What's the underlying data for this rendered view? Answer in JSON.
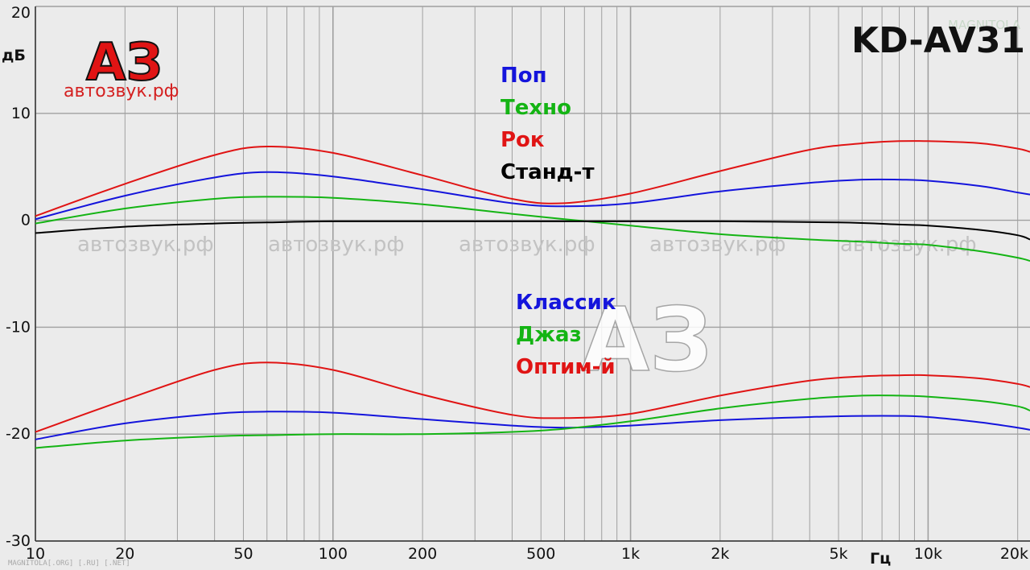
{
  "model": "KD-AV31",
  "logo": {
    "letters": "АЗ",
    "url": "автозвук.рф"
  },
  "watermarks": [
    "автозвук.рф",
    "автозвук.рф",
    "автозвук.рф",
    "автозвук.рф",
    "автозвук.рф"
  ],
  "corner_brand": "MAGNITOLA",
  "footer": "MAGNITOLA[.ORG] [.RU] [.NET]",
  "colors": {
    "blue": "#1414dc",
    "green": "#14b414",
    "red": "#e01414",
    "black": "#000000",
    "background": "#ebebeb",
    "grid": "#a0a0a0"
  },
  "chart_data": {
    "type": "line",
    "title": "",
    "xlabel": "Гц",
    "ylabel": "дБ",
    "xscale": "log",
    "xlim": [
      10,
      22000
    ],
    "ylim": [
      -30,
      20
    ],
    "grid": true,
    "x_tick_labels": [
      {
        "value": 10,
        "label": "10"
      },
      {
        "value": 20,
        "label": "20"
      },
      {
        "value": 50,
        "label": "50"
      },
      {
        "value": 100,
        "label": "100"
      },
      {
        "value": 200,
        "label": "200"
      },
      {
        "value": 500,
        "label": "500"
      },
      {
        "value": 1000,
        "label": "1k"
      },
      {
        "value": 2000,
        "label": "2k"
      },
      {
        "value": 5000,
        "label": "5k"
      },
      {
        "value": 10000,
        "label": "10k"
      },
      {
        "value": 20000,
        "label": "20k"
      }
    ],
    "y_tick_labels": [
      {
        "value": 20,
        "label": "20"
      },
      {
        "value": 10,
        "label": "10"
      },
      {
        "value": 0,
        "label": "0"
      },
      {
        "value": -10,
        "label": "-10"
      },
      {
        "value": -20,
        "label": "-20"
      },
      {
        "value": -30,
        "label": "-30"
      }
    ],
    "legend_groups": [
      [
        "Поп",
        "Техно",
        "Рок",
        "Станд-т"
      ],
      [
        "Классик",
        "Джаз",
        "Оптим-й"
      ]
    ],
    "series": [
      {
        "name": "Поп",
        "color": "blue",
        "x": [
          10,
          20,
          40,
          60,
          100,
          200,
          400,
          600,
          1000,
          2000,
          4000,
          6000,
          8000,
          10000,
          15000,
          20000,
          22000
        ],
        "y": [
          0.1,
          2.3,
          4.0,
          4.5,
          4.1,
          2.9,
          1.6,
          1.3,
          1.6,
          2.7,
          3.5,
          3.8,
          3.8,
          3.7,
          3.2,
          2.6,
          2.4
        ]
      },
      {
        "name": "Техно",
        "color": "green",
        "x": [
          10,
          20,
          40,
          60,
          100,
          200,
          400,
          600,
          1000,
          2000,
          4000,
          6000,
          8000,
          10000,
          15000,
          20000,
          22000
        ],
        "y": [
          -0.3,
          1.1,
          2.0,
          2.2,
          2.1,
          1.5,
          0.6,
          0.1,
          -0.5,
          -1.3,
          -1.8,
          -2.0,
          -2.2,
          -2.3,
          -2.9,
          -3.5,
          -3.8
        ]
      },
      {
        "name": "Рок",
        "color": "red",
        "x": [
          10,
          20,
          40,
          60,
          100,
          200,
          400,
          600,
          1000,
          2000,
          4000,
          6000,
          8000,
          10000,
          15000,
          20000,
          22000
        ],
        "y": [
          0.4,
          3.4,
          6.1,
          6.9,
          6.3,
          4.2,
          2.0,
          1.6,
          2.5,
          4.6,
          6.6,
          7.2,
          7.4,
          7.4,
          7.2,
          6.7,
          6.4
        ]
      },
      {
        "name": "Станд-т",
        "color": "black",
        "x": [
          10,
          20,
          40,
          60,
          100,
          200,
          500,
          1000,
          2000,
          5000,
          8000,
          10000,
          15000,
          20000,
          22000
        ],
        "y": [
          -1.2,
          -0.6,
          -0.3,
          -0.2,
          -0.1,
          -0.1,
          -0.1,
          -0.1,
          -0.1,
          -0.2,
          -0.4,
          -0.5,
          -0.9,
          -1.4,
          -1.8
        ]
      },
      {
        "name": "Классик",
        "color": "blue",
        "x": [
          10,
          20,
          40,
          60,
          100,
          200,
          400,
          600,
          1000,
          2000,
          4000,
          6000,
          8000,
          10000,
          15000,
          20000,
          22000
        ],
        "y": [
          -20.5,
          -19.0,
          -18.1,
          -17.9,
          -18.0,
          -18.6,
          -19.2,
          -19.4,
          -19.2,
          -18.7,
          -18.4,
          -18.3,
          -18.3,
          -18.4,
          -18.9,
          -19.4,
          -19.6
        ]
      },
      {
        "name": "Джаз",
        "color": "green",
        "x": [
          10,
          20,
          40,
          60,
          100,
          200,
          400,
          600,
          1000,
          2000,
          4000,
          6000,
          8000,
          10000,
          15000,
          20000,
          22000
        ],
        "y": [
          -21.3,
          -20.6,
          -20.2,
          -20.1,
          -20.0,
          -20.0,
          -19.8,
          -19.5,
          -18.8,
          -17.6,
          -16.7,
          -16.4,
          -16.4,
          -16.5,
          -16.9,
          -17.4,
          -17.8
        ]
      },
      {
        "name": "Оптим-й",
        "color": "red",
        "x": [
          10,
          20,
          40,
          60,
          100,
          200,
          400,
          600,
          1000,
          2000,
          4000,
          6000,
          8000,
          10000,
          15000,
          20000,
          22000
        ],
        "y": [
          -19.8,
          -16.8,
          -14.0,
          -13.3,
          -14.0,
          -16.3,
          -18.2,
          -18.5,
          -18.1,
          -16.4,
          -15.0,
          -14.6,
          -14.5,
          -14.5,
          -14.8,
          -15.3,
          -15.6
        ]
      }
    ]
  }
}
